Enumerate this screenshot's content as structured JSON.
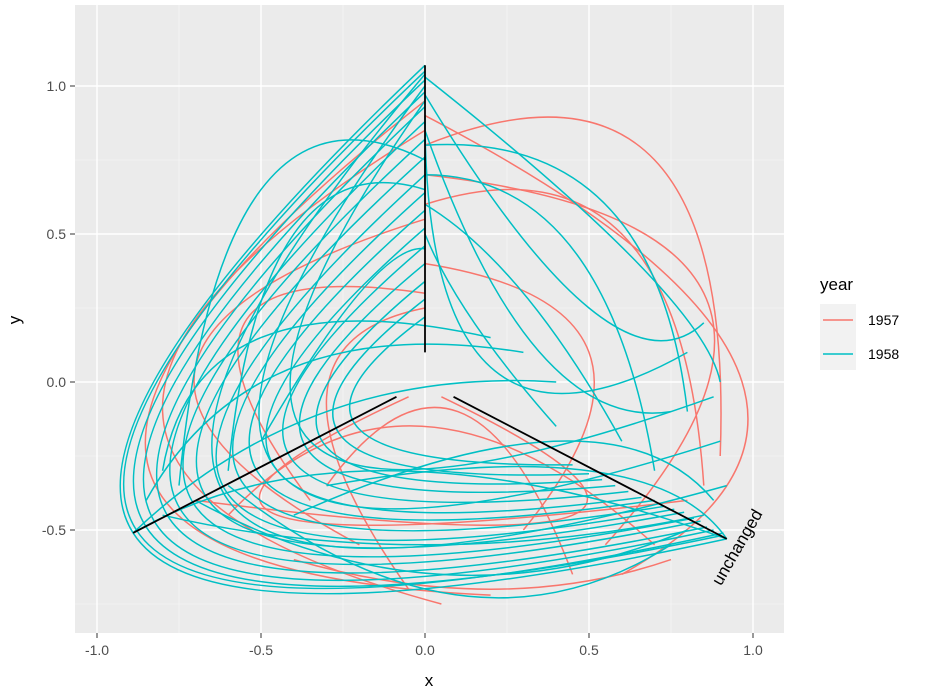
{
  "chart_data": {
    "type": "line",
    "title": "",
    "xlabel": "x",
    "ylabel": "y",
    "xlim": [
      -1.0,
      1.0
    ],
    "ylim": [
      -0.75,
      1.1
    ],
    "x_ticks": [
      -1.0,
      -0.5,
      0.0,
      0.5,
      1.0
    ],
    "x_tick_labels": [
      "-1.0",
      "-0.5",
      "0.0",
      "0.5",
      "1.0"
    ],
    "y_ticks": [
      -0.5,
      0.0,
      0.5,
      1.0
    ],
    "y_tick_labels": [
      "-0.5",
      "0.0",
      "0.5",
      "1.0"
    ],
    "grid": true,
    "legend": {
      "title": "year",
      "position": "right",
      "entries": [
        {
          "label": "1957",
          "color": "#F8766D"
        },
        {
          "label": "1958",
          "color": "#00BFC4"
        }
      ]
    },
    "annotation": "unchanged",
    "axes_lines": [
      {
        "from": [
          0.0,
          0.1
        ],
        "to": [
          0.0,
          1.07
        ]
      },
      {
        "from": [
          -0.087,
          -0.05
        ],
        "to": [
          -0.89,
          -0.51
        ]
      },
      {
        "from": [
          0.087,
          -0.05
        ],
        "to": [
          0.92,
          -0.53
        ]
      }
    ],
    "series": [
      {
        "name": "1957",
        "color": "#F8766D",
        "curves": [
          [
            [
              0.0,
              0.3
            ],
            [
              -0.55,
              0.2
            ],
            [
              -0.35,
              -0.4
            ]
          ],
          [
            [
              0.0,
              0.55
            ],
            [
              -0.7,
              0.05
            ],
            [
              -0.2,
              -0.55
            ]
          ],
          [
            [
              0.0,
              0.85
            ],
            [
              -0.8,
              -0.1
            ],
            [
              0.05,
              -0.75
            ]
          ],
          [
            [
              0.0,
              0.95
            ],
            [
              -0.85,
              -0.25
            ],
            [
              0.2,
              -0.72
            ]
          ],
          [
            [
              0.0,
              0.4
            ],
            [
              0.5,
              0.1
            ],
            [
              0.3,
              -0.5
            ]
          ],
          [
            [
              0.0,
              0.7
            ],
            [
              0.85,
              0.3
            ],
            [
              0.55,
              -0.55
            ]
          ],
          [
            [
              0.0,
              0.9
            ],
            [
              0.95,
              0.05
            ],
            [
              0.6,
              -0.65
            ]
          ],
          [
            [
              -0.05,
              -0.05
            ],
            [
              -0.45,
              -0.45
            ],
            [
              0.8,
              -0.4
            ]
          ],
          [
            [
              0.05,
              -0.05
            ],
            [
              0.45,
              -0.45
            ],
            [
              -0.7,
              -0.4
            ]
          ],
          [
            [
              -0.6,
              -0.45
            ],
            [
              0.0,
              -0.15
            ],
            [
              0.7,
              -0.55
            ]
          ],
          [
            [
              -0.3,
              -0.35
            ],
            [
              0.1,
              -0.1
            ],
            [
              0.45,
              -0.65
            ]
          ],
          [
            [
              0.0,
              0.6
            ],
            [
              0.6,
              0.5
            ],
            [
              0.85,
              -0.35
            ]
          ],
          [
            [
              0.0,
              0.25
            ],
            [
              -0.3,
              -0.05
            ],
            [
              -0.05,
              -0.7
            ]
          ],
          [
            [
              -0.4,
              -0.6
            ],
            [
              0.2,
              -0.7
            ],
            [
              0.75,
              -0.6
            ]
          ],
          [
            [
              0.0,
              0.8
            ],
            [
              0.7,
              0.75
            ],
            [
              0.9,
              -0.25
            ]
          ]
        ]
      },
      {
        "name": "1958",
        "color": "#00BFC4",
        "curves": [
          [
            [
              0.0,
              1.07
            ],
            [
              -0.89,
              -0.51
            ],
            [
              0.92,
              -0.53
            ]
          ],
          [
            [
              0.0,
              1.05
            ],
            [
              -0.88,
              -0.5
            ],
            [
              0.91,
              -0.51
            ]
          ],
          [
            [
              0.0,
              1.02
            ],
            [
              -0.85,
              -0.49
            ],
            [
              0.9,
              -0.52
            ]
          ],
          [
            [
              0.0,
              0.98
            ],
            [
              -0.82,
              -0.48
            ],
            [
              0.88,
              -0.5
            ]
          ],
          [
            [
              0.0,
              0.93
            ],
            [
              -0.78,
              -0.46
            ],
            [
              0.86,
              -0.49
            ]
          ],
          [
            [
              0.0,
              0.88
            ],
            [
              -0.74,
              -0.44
            ],
            [
              0.84,
              -0.47
            ]
          ],
          [
            [
              0.0,
              0.82
            ],
            [
              -0.7,
              -0.42
            ],
            [
              0.82,
              -0.46
            ]
          ],
          [
            [
              0.0,
              0.76
            ],
            [
              -0.66,
              -0.4
            ],
            [
              0.79,
              -0.44
            ]
          ],
          [
            [
              0.0,
              0.7
            ],
            [
              -0.6,
              -0.38
            ],
            [
              0.76,
              -0.43
            ]
          ],
          [
            [
              0.0,
              0.64
            ],
            [
              -0.55,
              -0.35
            ],
            [
              0.73,
              -0.42
            ]
          ],
          [
            [
              0.0,
              0.58
            ],
            [
              -0.5,
              -0.32
            ],
            [
              0.7,
              -0.4
            ]
          ],
          [
            [
              0.0,
              0.52
            ],
            [
              -0.45,
              -0.3
            ],
            [
              0.66,
              -0.39
            ]
          ],
          [
            [
              0.0,
              0.46
            ],
            [
              -0.4,
              -0.27
            ],
            [
              0.62,
              -0.37
            ]
          ],
          [
            [
              0.0,
              0.4
            ],
            [
              -0.35,
              -0.24
            ],
            [
              0.58,
              -0.35
            ]
          ],
          [
            [
              0.0,
              0.34
            ],
            [
              -0.3,
              -0.22
            ],
            [
              0.54,
              -0.33
            ]
          ],
          [
            [
              0.0,
              0.28
            ],
            [
              -0.25,
              -0.19
            ],
            [
              0.5,
              -0.31
            ]
          ],
          [
            [
              0.0,
              0.22
            ],
            [
              -0.2,
              -0.16
            ],
            [
              0.45,
              -0.28
            ]
          ],
          [
            [
              0.0,
              1.04
            ],
            [
              -0.6,
              -0.4
            ],
            [
              0.92,
              -0.35
            ]
          ],
          [
            [
              0.0,
              1.0
            ],
            [
              -0.45,
              -0.3
            ],
            [
              0.9,
              -0.2
            ]
          ],
          [
            [
              0.0,
              0.95
            ],
            [
              -0.35,
              -0.2
            ],
            [
              0.88,
              -0.05
            ]
          ],
          [
            [
              0.0,
              0.9
            ],
            [
              0.2,
              0.05
            ],
            [
              0.8,
              0.1
            ]
          ],
          [
            [
              0.0,
              0.85
            ],
            [
              0.35,
              0.1
            ],
            [
              0.75,
              -0.1
            ]
          ],
          [
            [
              0.0,
              0.97
            ],
            [
              0.5,
              0.25
            ],
            [
              0.85,
              0.2
            ]
          ],
          [
            [
              0.0,
              1.03
            ],
            [
              0.65,
              0.4
            ],
            [
              0.9,
              0.0
            ]
          ],
          [
            [
              -0.89,
              -0.51
            ],
            [
              -0.1,
              -0.3
            ],
            [
              0.92,
              -0.53
            ]
          ],
          [
            [
              -0.8,
              -0.45
            ],
            [
              0.0,
              -0.55
            ],
            [
              0.85,
              -0.45
            ]
          ],
          [
            [
              -0.7,
              -0.4
            ],
            [
              0.05,
              -0.65
            ],
            [
              0.8,
              -0.5
            ]
          ],
          [
            [
              -0.6,
              -0.35
            ],
            [
              0.1,
              -0.72
            ],
            [
              0.75,
              -0.55
            ]
          ],
          [
            [
              -0.89,
              -0.51
            ],
            [
              -0.3,
              -0.1
            ],
            [
              0.4,
              0.0
            ]
          ],
          [
            [
              -0.85,
              -0.4
            ],
            [
              -0.4,
              0.05
            ],
            [
              0.3,
              0.1
            ]
          ],
          [
            [
              -0.8,
              -0.3
            ],
            [
              -0.5,
              0.15
            ],
            [
              0.2,
              0.15
            ]
          ],
          [
            [
              0.92,
              -0.53
            ],
            [
              0.5,
              -0.3
            ],
            [
              -0.3,
              -0.35
            ]
          ],
          [
            [
              0.88,
              -0.4
            ],
            [
              0.4,
              -0.2
            ],
            [
              -0.4,
              -0.45
            ]
          ],
          [
            [
              0.0,
              0.65
            ],
            [
              -0.4,
              0.5
            ],
            [
              -0.6,
              -0.3
            ]
          ],
          [
            [
              0.0,
              0.75
            ],
            [
              -0.5,
              0.65
            ],
            [
              -0.75,
              -0.35
            ]
          ],
          [
            [
              0.0,
              0.45
            ],
            [
              -0.2,
              0.3
            ],
            [
              -0.5,
              -0.2
            ]
          ],
          [
            [
              0.0,
              0.6
            ],
            [
              0.3,
              0.3
            ],
            [
              0.6,
              -0.2
            ]
          ],
          [
            [
              0.0,
              0.7
            ],
            [
              0.45,
              0.45
            ],
            [
              0.7,
              -0.3
            ]
          ],
          [
            [
              0.0,
              0.8
            ],
            [
              0.55,
              0.6
            ],
            [
              0.8,
              -0.1
            ]
          ],
          [
            [
              0.0,
              0.5
            ],
            [
              0.15,
              0.2
            ],
            [
              0.4,
              -0.15
            ]
          ]
        ]
      }
    ]
  }
}
